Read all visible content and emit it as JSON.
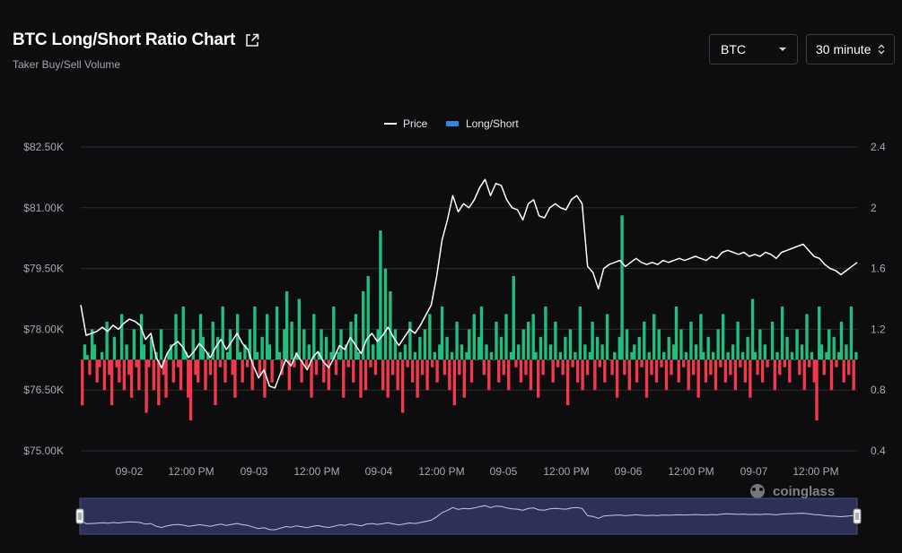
{
  "header": {
    "title": "BTC Long/Short Ratio Chart",
    "subtitle": "Taker Buy/Sell Volume",
    "coin_select": "BTC",
    "interval_select": "30 minute"
  },
  "watermark": "coinglass",
  "colors": {
    "up": "#1fc07f",
    "down": "#f2394c",
    "price": "#ffffff",
    "legend_ls": "#2e86de",
    "navigator_bg": "#2d3159"
  },
  "chart_data": {
    "type": "line",
    "legend": [
      "Price",
      "Long/Short"
    ],
    "legend_position": "top-center",
    "x_tick_labels": [
      "09-02",
      "12:00 PM",
      "09-03",
      "12:00 PM",
      "09-04",
      "12:00 PM",
      "09-05",
      "12:00 PM",
      "09-06",
      "12:00 PM",
      "09-07",
      "12:00 PM"
    ],
    "y_left": {
      "ticks": [
        "$82.50K",
        "$81.00K",
        "$79.50K",
        "$78.00K",
        "$76.50K",
        "$75.00K"
      ],
      "range": [
        75000,
        82500
      ]
    },
    "y_right": {
      "ticks": [
        "2.4",
        "2",
        "1.6",
        "1.2",
        "0.8",
        "0.4"
      ],
      "range": [
        0.4,
        2.4
      ],
      "baseline": 1.0
    },
    "grid": true,
    "x_range_hours": [
      0,
      144
    ],
    "price_series": [
      [
        0,
        78600
      ],
      [
        1,
        77850
      ],
      [
        2,
        77900
      ],
      [
        3,
        77950
      ],
      [
        4,
        78050
      ],
      [
        5,
        77950
      ],
      [
        6,
        78100
      ],
      [
        7,
        78000
      ],
      [
        8,
        78150
      ],
      [
        9,
        78250
      ],
      [
        10,
        78200
      ],
      [
        11,
        78100
      ],
      [
        12,
        77750
      ],
      [
        13,
        77900
      ],
      [
        14,
        77300
      ],
      [
        15,
        77050
      ],
      [
        16,
        77400
      ],
      [
        17,
        77600
      ],
      [
        18,
        77700
      ],
      [
        19,
        77550
      ],
      [
        20,
        77300
      ],
      [
        21,
        77450
      ],
      [
        22,
        77650
      ],
      [
        23,
        77500
      ],
      [
        24,
        77300
      ],
      [
        25,
        77550
      ],
      [
        26,
        77750
      ],
      [
        27,
        77500
      ],
      [
        28,
        77700
      ],
      [
        29,
        77900
      ],
      [
        30,
        77650
      ],
      [
        31,
        77500
      ],
      [
        32,
        77100
      ],
      [
        33,
        76800
      ],
      [
        34,
        77000
      ],
      [
        35,
        76600
      ],
      [
        36,
        76550
      ],
      [
        37,
        76900
      ],
      [
        38,
        77250
      ],
      [
        39,
        77100
      ],
      [
        40,
        77400
      ],
      [
        41,
        77200
      ],
      [
        42,
        77000
      ],
      [
        43,
        77300
      ],
      [
        44,
        77450
      ],
      [
        45,
        77200
      ],
      [
        46,
        77050
      ],
      [
        47,
        77300
      ],
      [
        48,
        77600
      ],
      [
        49,
        77500
      ],
      [
        50,
        77800
      ],
      [
        51,
        77600
      ],
      [
        52,
        77400
      ],
      [
        53,
        77750
      ],
      [
        54,
        77900
      ],
      [
        55,
        77700
      ],
      [
        56,
        77850
      ],
      [
        57,
        78050
      ],
      [
        58,
        77800
      ],
      [
        59,
        77600
      ],
      [
        60,
        77800
      ],
      [
        61,
        78000
      ],
      [
        62,
        77900
      ],
      [
        63,
        78100
      ],
      [
        64,
        78350
      ],
      [
        65,
        78600
      ],
      [
        66,
        79300
      ],
      [
        67,
        80200
      ],
      [
        68,
        80700
      ],
      [
        69,
        81300
      ],
      [
        70,
        80900
      ],
      [
        71,
        81100
      ],
      [
        72,
        81000
      ],
      [
        73,
        81200
      ],
      [
        74,
        81500
      ],
      [
        75,
        81700
      ],
      [
        76,
        81300
      ],
      [
        77,
        81600
      ],
      [
        78,
        81550
      ],
      [
        79,
        81200
      ],
      [
        80,
        81000
      ],
      [
        81,
        80950
      ],
      [
        82,
        80700
      ],
      [
        83,
        81100
      ],
      [
        84,
        81200
      ],
      [
        85,
        80800
      ],
      [
        86,
        80750
      ],
      [
        87,
        81000
      ],
      [
        88,
        81100
      ],
      [
        89,
        81000
      ],
      [
        90,
        80950
      ],
      [
        91,
        81200
      ],
      [
        92,
        81300
      ],
      [
        93,
        81100
      ],
      [
        94,
        79550
      ],
      [
        95,
        79400
      ],
      [
        96,
        79000
      ],
      [
        97,
        79500
      ],
      [
        98,
        79600
      ],
      [
        99,
        79650
      ],
      [
        100,
        79700
      ],
      [
        101,
        79550
      ],
      [
        102,
        79650
      ],
      [
        103,
        79750
      ],
      [
        104,
        79650
      ],
      [
        105,
        79600
      ],
      [
        106,
        79650
      ],
      [
        107,
        79600
      ],
      [
        108,
        79700
      ],
      [
        109,
        79650
      ],
      [
        110,
        79700
      ],
      [
        111,
        79750
      ],
      [
        112,
        79700
      ],
      [
        113,
        79750
      ],
      [
        114,
        79800
      ],
      [
        115,
        79750
      ],
      [
        116,
        79700
      ],
      [
        117,
        79800
      ],
      [
        118,
        79750
      ],
      [
        119,
        79900
      ],
      [
        120,
        79950
      ],
      [
        121,
        79900
      ],
      [
        122,
        79850
      ],
      [
        123,
        79900
      ],
      [
        124,
        79800
      ],
      [
        125,
        79850
      ],
      [
        126,
        79800
      ],
      [
        127,
        79900
      ],
      [
        128,
        79850
      ],
      [
        129,
        79750
      ],
      [
        130,
        79900
      ],
      [
        131,
        79950
      ],
      [
        132,
        80000
      ],
      [
        133,
        80050
      ],
      [
        134,
        80100
      ],
      [
        135,
        79950
      ],
      [
        136,
        79800
      ],
      [
        137,
        79750
      ],
      [
        138,
        79600
      ],
      [
        139,
        79500
      ],
      [
        140,
        79450
      ],
      [
        141,
        79350
      ],
      [
        142,
        79450
      ],
      [
        143,
        79550
      ],
      [
        144,
        79650
      ]
    ],
    "ratio_values": [
      0.7,
      1.1,
      1.03,
      0.9,
      1.2,
      1.1,
      0.85,
      0.95,
      1.05,
      0.8,
      1.25,
      0.9,
      0.7,
      1.15,
      0.95,
      0.85,
      1.3,
      0.8,
      1.1,
      0.9,
      0.75,
      1.2,
      0.95,
      0.8,
      1.3,
      1.1,
      0.65,
      0.95,
      1.15,
      0.8,
      1.05,
      0.7,
      1.2,
      0.9,
      0.75,
      1.05,
      1.1,
      0.85,
      1.3,
      0.95,
      0.8,
      1.35,
      1.05,
      0.75,
      0.6,
      1.2,
      0.9,
      0.85,
      1.3,
      1.15,
      0.8,
      1.05,
      0.9,
      1.25,
      0.7,
      1.15,
      0.95,
      1.35,
      0.85,
      1.05,
      1.2,
      0.9,
      0.75,
      1.3,
      1.05,
      0.85,
      1.1,
      0.95,
      1.2,
      0.8,
      1.35,
      1.05,
      0.9,
      1.15,
      0.75,
      1.3,
      1.1,
      0.85,
      1.0,
      1.35,
      1.05,
      0.9,
      1.2,
      1.45,
      0.8,
      1.25,
      0.95,
      1.05,
      1.4,
      0.85,
      1.2,
      0.95,
      1.1,
      0.75,
      1.3,
      0.9,
      1.05,
      1.2,
      0.85,
      1.15,
      0.8,
      1.05,
      1.35,
      0.9,
      1.05,
      1.2,
      0.75,
      1.1,
      0.95,
      1.25,
      0.85,
      1.3,
      1.05,
      0.75,
      1.45,
      0.8,
      1.55,
      0.95,
      1.1,
      0.9,
      1.2,
      1.85,
      0.8,
      1.6,
      0.75,
      1.45,
      0.9,
      1.2,
      0.8,
      1.05,
      0.65,
      1.1,
      0.95,
      1.25,
      0.85,
      1.05,
      0.75,
      1.15,
      0.9,
      1.2,
      0.8,
      1.3,
      0.95,
      1.05,
      0.85,
      1.1,
      1.35,
      0.9,
      1.15,
      0.8,
      1.05,
      0.7,
      1.25,
      0.9,
      1.1,
      0.75,
      1.05,
      1.2,
      0.85,
      1.3,
      1.0,
      1.15,
      1.35,
      0.9,
      1.1,
      0.8,
      1.05,
      1.0,
      1.25,
      0.85,
      1.15,
      0.9,
      1.3,
      0.8,
      1.05,
      1.55,
      0.95,
      1.1,
      0.85,
      1.2,
      0.9,
      1.25,
      0.8,
      1.3,
      1.05,
      0.75,
      1.15,
      0.9,
      1.35,
      1.0,
      1.1,
      0.85,
      1.25,
      0.95,
      1.05,
      0.9,
      1.15,
      0.7,
      1.2,
      0.95,
      1.05,
      0.85,
      1.35,
      0.8,
      1.1,
      0.9,
      1.05,
      1.25,
      0.8,
      1.15,
      0.95,
      1.1,
      0.85,
      1.3,
      1.0,
      0.9,
      1.05,
      0.75,
      1.15,
      1.95,
      0.9,
      1.2,
      0.8,
      1.05,
      1.1,
      0.85,
      1.15,
      0.95,
      1.25,
      0.75,
      1.05,
      0.9,
      1.3,
      0.85,
      1.2,
      0.95,
      1.05,
      0.8,
      1.15,
      0.9,
      1.1,
      1.35,
      0.85,
      1.2,
      0.95,
      1.05,
      0.8,
      1.25,
      0.9,
      1.1,
      0.75,
      1.3,
      1.05,
      0.85,
      1.15,
      0.9,
      1.05,
      0.8,
      1.2,
      0.95,
      1.3,
      0.85,
      1.05,
      0.9,
      1.1,
      0.8,
      1.25,
      0.95,
      1.05,
      0.85,
      1.15,
      0.75,
      1.4,
      1.05,
      0.9,
      1.2,
      0.85,
      1.1,
      0.95,
      1.0,
      1.25,
      0.8,
      1.05,
      0.9,
      1.35,
      0.95,
      1.15,
      0.85,
      1.05,
      1.0,
      1.2,
      0.9,
      1.1,
      0.8,
      1.3,
      0.95,
      1.05,
      0.85,
      0.6,
      1.35,
      1.1,
      0.9,
      1.05,
      1.2,
      0.8,
      1.15,
      0.95,
      1.05,
      1.25,
      0.85,
      1.1,
      0.9,
      1.35,
      0.8,
      1.05
    ]
  }
}
